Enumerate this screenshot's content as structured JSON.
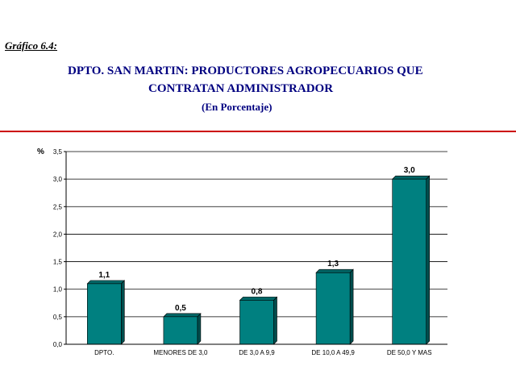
{
  "figure_label": "Gráfico 6.4:",
  "title_line1": "DPTO. SAN MARTIN: PRODUCTORES AGROPECUARIOS QUE",
  "title_line2": "CONTRATAN ADMINISTRADOR",
  "subtitle": "(En Porcentaje)",
  "colors": {
    "bar": "#008080",
    "bar_side": "#004d4d",
    "bar_top": "#006666",
    "divider": "#cc0000",
    "title": "#000080"
  },
  "chart_data": {
    "type": "bar",
    "title": "DPTO. SAN MARTIN: PRODUCTORES AGROPECUARIOS QUE CONTRATAN ADMINISTRADOR",
    "subtitle": "(En Porcentaje)",
    "ylabel": "%",
    "xlabel": "",
    "categories": [
      "DPTO.",
      "MENORES DE 3,0",
      "DE 3,0 A 9,9",
      "DE 10,0 A 49,9",
      "DE 50,0 Y MAS"
    ],
    "values": [
      1.1,
      0.5,
      0.8,
      1.3,
      3.0
    ],
    "value_labels": [
      "1,1",
      "0,5",
      "0,8",
      "1,3",
      "3,0"
    ],
    "ylim": [
      0,
      3.5
    ],
    "yticks": [
      0,
      0.5,
      1.0,
      1.5,
      2.0,
      2.5,
      3.0,
      3.5
    ],
    "ytick_labels": [
      "0,0",
      "0,5",
      "1,0",
      "1,5",
      "2,0",
      "2,5",
      "3,0",
      "3,5"
    ],
    "grid": true,
    "legend": "none"
  }
}
